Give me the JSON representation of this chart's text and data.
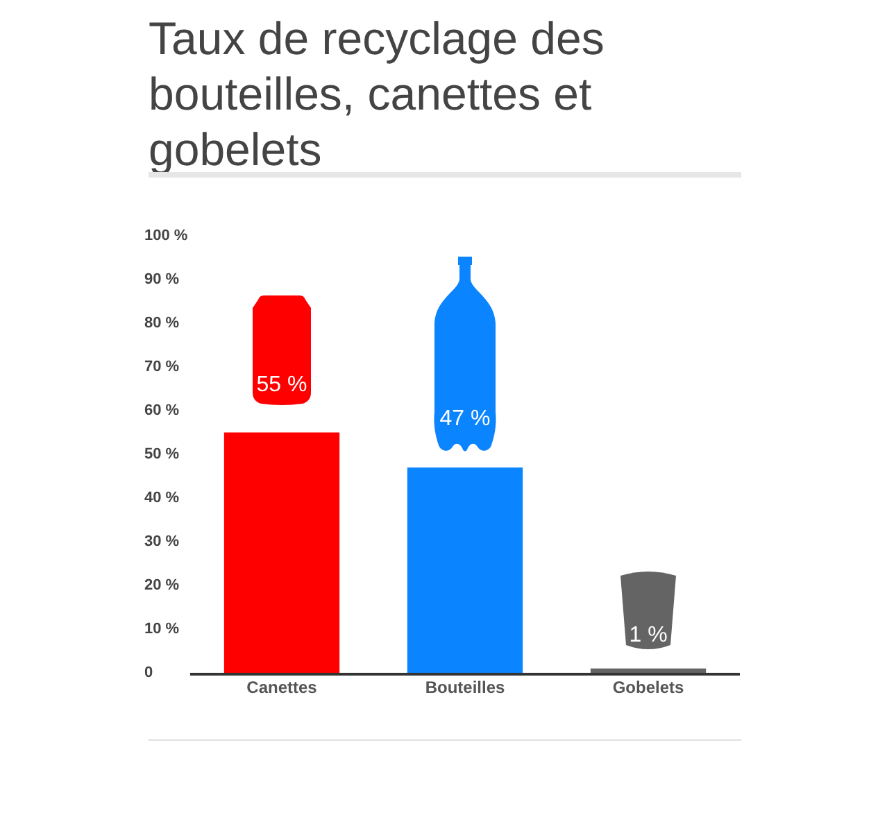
{
  "chart_data": {
    "type": "bar",
    "title": "Taux de recyclage des bouteilles, canettes et gobelets",
    "categories": [
      "Canettes",
      "Bouteilles",
      "Gobelets"
    ],
    "values": [
      55,
      47,
      1
    ],
    "colors": [
      "#ff0000",
      "#0b84ff",
      "#646464"
    ],
    "value_labels": [
      "55 %",
      "47 %",
      "1 %"
    ],
    "ylim": [
      0,
      100
    ],
    "yticks": [
      0,
      {
        "value": 10,
        "label": "10 %"
      },
      {
        "value": 20,
        "label": "20 %"
      },
      {
        "value": 30,
        "label": "30 %"
      },
      {
        "value": 40,
        "label": "40 %"
      },
      {
        "value": 50,
        "label": "50 %"
      },
      {
        "value": 60,
        "label": "60 %"
      },
      {
        "value": 70,
        "label": "70 %"
      },
      {
        "value": 80,
        "label": "80 %"
      },
      {
        "value": 90,
        "label": "90 %"
      },
      {
        "value": 100,
        "label": "100 %"
      }
    ],
    "grid": false,
    "legend": false
  }
}
